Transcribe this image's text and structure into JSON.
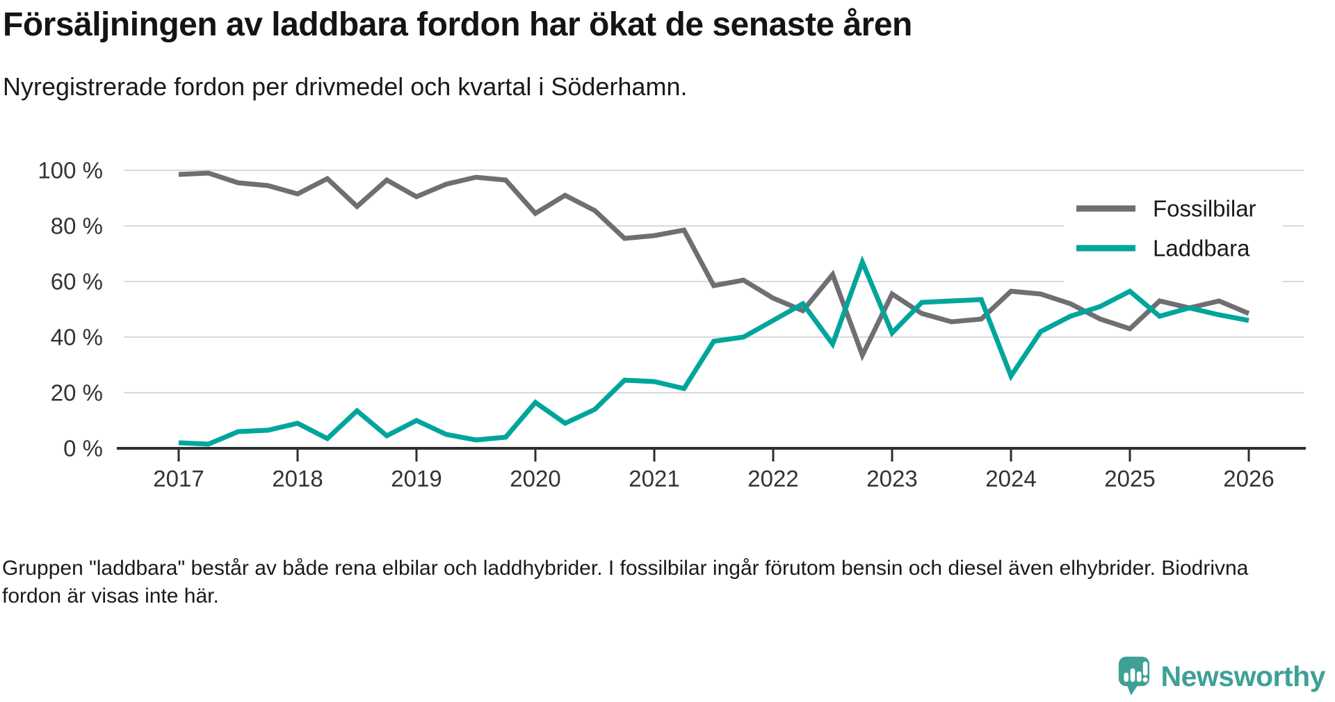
{
  "title": "Försäljningen av laddbara fordon har ökat de senaste åren",
  "subtitle": "Nyregistrerade fordon per drivmedel och kvartal i Söderhamn.",
  "footnote": "Gruppen \"laddbara\" består av både rena elbilar och laddhybrider. I fossilbilar ingår förutom bensin och diesel även elhybrider. Biodrivna fordon är visas inte här.",
  "logo": {
    "text": "Newsworthy",
    "color": "#3fa096",
    "icon": "bar-chart-speech-bubble"
  },
  "chart_data": {
    "type": "line",
    "first_point": "2017 Q1",
    "points_per_year": 4,
    "x_tick_labels": [
      "2017",
      "2018",
      "2019",
      "2020",
      "2021",
      "2022",
      "2023",
      "2024",
      "2025",
      "2026"
    ],
    "y_ticks": [
      {
        "label": "100 %",
        "value": 100
      },
      {
        "label": "80 %",
        "value": 80
      },
      {
        "label": "60 %",
        "value": 60
      },
      {
        "label": "40 %",
        "value": 40
      },
      {
        "label": "20 %",
        "value": 20
      },
      {
        "label": "0 %",
        "value": 0
      }
    ],
    "ylim": [
      0,
      100
    ],
    "grid": true,
    "grid_color": "#d9d9d9",
    "axis_color": "#2e2e2e",
    "tick_label_color": "#333333",
    "legend_position": "upper-right",
    "legend_text_color": "#1a1a1a",
    "series": [
      {
        "name": "Fossilbilar",
        "color": "#6e6e73",
        "values": [
          98.5,
          99,
          95.5,
          94.5,
          91.5,
          97,
          87,
          96.5,
          90.5,
          95,
          97.5,
          96.5,
          84.5,
          91,
          85.5,
          75.5,
          76.5,
          78.5,
          58.5,
          60.5,
          54,
          49.5,
          62.5,
          33.5,
          55.5,
          48.5,
          45.5,
          46.5,
          56.5,
          55.5,
          52,
          46.5,
          43,
          53,
          50.5,
          53,
          48.5
        ]
      },
      {
        "name": "Laddbara",
        "color": "#00a59b",
        "values": [
          2,
          1.5,
          6,
          6.5,
          9,
          3.5,
          13.5,
          4.5,
          10,
          5,
          3,
          4,
          16.5,
          9,
          14,
          24.5,
          24,
          21.5,
          38.5,
          40,
          46,
          52,
          37.5,
          67,
          41.5,
          52.5,
          53,
          53.5,
          26,
          42,
          47.5,
          51,
          56.5,
          47.5,
          50.5,
          48,
          46
        ]
      }
    ]
  }
}
